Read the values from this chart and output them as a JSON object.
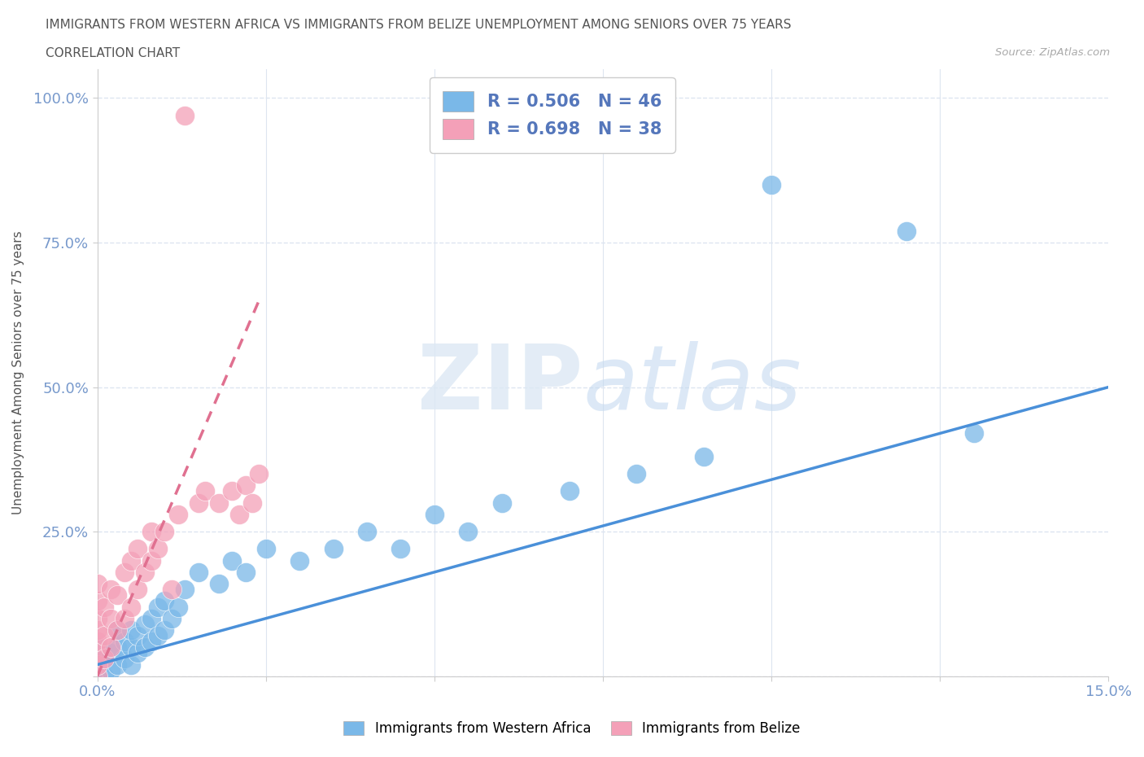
{
  "title_line1": "IMMIGRANTS FROM WESTERN AFRICA VS IMMIGRANTS FROM BELIZE UNEMPLOYMENT AMONG SENIORS OVER 75 YEARS",
  "title_line2": "CORRELATION CHART",
  "source": "Source: ZipAtlas.com",
  "ylabel_label": "Unemployment Among Seniors over 75 years",
  "legend_label1": "Immigrants from Western Africa",
  "legend_label2": "Immigrants from Belize",
  "blue_color": "#7ab8e8",
  "pink_color": "#f4a0b8",
  "blue_line_color": "#4a90d9",
  "pink_line_color": "#e07090",
  "bg_color": "#ffffff",
  "grid_color": "#dde5f0",
  "title_color": "#555555",
  "axis_label_color": "#5577bb",
  "tick_color": "#7799cc",
  "wa_x": [
    0.0,
    0.0,
    0.0,
    0.001,
    0.001,
    0.002,
    0.002,
    0.003,
    0.003,
    0.003,
    0.004,
    0.004,
    0.005,
    0.005,
    0.005,
    0.006,
    0.006,
    0.007,
    0.007,
    0.008,
    0.008,
    0.009,
    0.009,
    0.01,
    0.01,
    0.011,
    0.012,
    0.013,
    0.015,
    0.018,
    0.02,
    0.022,
    0.025,
    0.03,
    0.035,
    0.04,
    0.045,
    0.05,
    0.055,
    0.06,
    0.07,
    0.08,
    0.09,
    0.1,
    0.12,
    0.13
  ],
  "wa_y": [
    0.0,
    0.02,
    0.05,
    0.0,
    0.03,
    0.01,
    0.04,
    0.02,
    0.05,
    0.08,
    0.03,
    0.06,
    0.02,
    0.05,
    0.08,
    0.04,
    0.07,
    0.05,
    0.09,
    0.06,
    0.1,
    0.07,
    0.12,
    0.08,
    0.13,
    0.1,
    0.12,
    0.15,
    0.18,
    0.16,
    0.2,
    0.18,
    0.22,
    0.2,
    0.22,
    0.25,
    0.22,
    0.28,
    0.25,
    0.3,
    0.32,
    0.35,
    0.38,
    0.85,
    0.77,
    0.42
  ],
  "bz_x": [
    0.0,
    0.0,
    0.0,
    0.0,
    0.0,
    0.0,
    0.0,
    0.0,
    0.001,
    0.001,
    0.001,
    0.002,
    0.002,
    0.002,
    0.003,
    0.003,
    0.004,
    0.004,
    0.005,
    0.005,
    0.006,
    0.006,
    0.007,
    0.008,
    0.008,
    0.009,
    0.01,
    0.012,
    0.013,
    0.015,
    0.016,
    0.018,
    0.02,
    0.021,
    0.022,
    0.023,
    0.024,
    0.011
  ],
  "bz_y": [
    0.0,
    0.02,
    0.04,
    0.06,
    0.08,
    0.1,
    0.13,
    0.16,
    0.03,
    0.07,
    0.12,
    0.05,
    0.1,
    0.15,
    0.08,
    0.14,
    0.1,
    0.18,
    0.12,
    0.2,
    0.15,
    0.22,
    0.18,
    0.2,
    0.25,
    0.22,
    0.25,
    0.28,
    0.97,
    0.3,
    0.32,
    0.3,
    0.32,
    0.28,
    0.33,
    0.3,
    0.35,
    0.15
  ],
  "xlim": [
    0.0,
    0.15
  ],
  "ylim": [
    0.0,
    1.05
  ],
  "blue_trend_x": [
    0.0,
    0.15
  ],
  "blue_trend_y": [
    0.02,
    0.5
  ],
  "pink_trend_x": [
    0.0,
    0.024
  ],
  "pink_trend_y": [
    0.0,
    0.65
  ]
}
